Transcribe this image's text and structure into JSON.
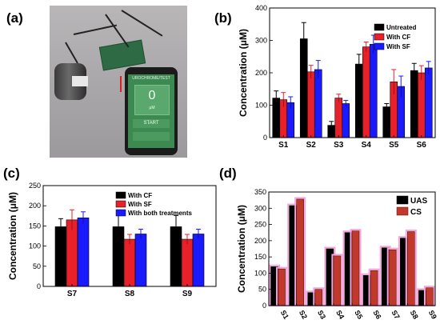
{
  "panels": {
    "a": {
      "label": "(a)"
    },
    "b": {
      "label": "(b)"
    },
    "c": {
      "label": "(c)"
    },
    "d": {
      "label": "(d)"
    }
  },
  "photo": {
    "screen_title": "UROCHROME/TEST",
    "reading_value": "0",
    "reading_unit": "μM",
    "button_start": "START",
    "button_extra": ""
  },
  "colors": {
    "black": "#000000",
    "red": "#e8202a",
    "blue": "#1a1aff",
    "pink_halo": "#f4a6dc",
    "cs_fill": "#c0392b",
    "cs_stroke": "#5a1212"
  },
  "chart_data": [
    {
      "panel": "b",
      "type": "bar",
      "ylabel": "Concentration (μM)",
      "xlabel": "",
      "title": "",
      "categories": [
        "S1",
        "S2",
        "S3",
        "S4",
        "S5",
        "S6"
      ],
      "ylim": [
        0,
        400
      ],
      "yticks": [
        0,
        100,
        200,
        300,
        400
      ],
      "legend_position": "top-right",
      "series": [
        {
          "name": "Untreated",
          "color": "#000000",
          "values": [
            122,
            305,
            38,
            227,
            95,
            207
          ],
          "errors": [
            22,
            50,
            12,
            30,
            10,
            22
          ]
        },
        {
          "name": "With CF",
          "color": "#e8202a",
          "values": [
            117,
            203,
            122,
            280,
            172,
            200
          ],
          "errors": [
            22,
            20,
            12,
            15,
            38,
            22
          ]
        },
        {
          "name": "With SF",
          "color": "#1a1aff",
          "values": [
            108,
            210,
            105,
            288,
            158,
            215
          ],
          "errors": [
            18,
            28,
            10,
            28,
            32,
            20
          ]
        }
      ]
    },
    {
      "panel": "c",
      "type": "bar",
      "ylabel": "Concentration (μM)",
      "xlabel": "",
      "title": "",
      "categories": [
        "S7",
        "S8",
        "S9"
      ],
      "ylim": [
        0,
        250
      ],
      "yticks": [
        0,
        50,
        100,
        150,
        200,
        250
      ],
      "legend_position": "top-right",
      "series": [
        {
          "name": "With CF",
          "color": "#000000",
          "values": [
            148,
            148,
            148
          ],
          "errors": [
            20,
            28,
            28
          ]
        },
        {
          "name": "With SF",
          "color": "#e8202a",
          "values": [
            165,
            117,
            117
          ],
          "errors": [
            25,
            12,
            12
          ]
        },
        {
          "name": "With both treatments",
          "color": "#1a1aff",
          "values": [
            170,
            130,
            130
          ],
          "errors": [
            15,
            12,
            12
          ]
        }
      ]
    },
    {
      "panel": "d",
      "type": "bar",
      "ylabel": "Concentration (μM)",
      "xlabel": "",
      "title": "",
      "categories": [
        "S1",
        "S2",
        "S3",
        "S4",
        "S5",
        "S6",
        "S7",
        "S8",
        "S9"
      ],
      "ylim": [
        0,
        350
      ],
      "yticks": [
        0,
        50,
        100,
        150,
        200,
        250,
        300,
        350
      ],
      "legend_position": "top-right",
      "highlight_pink": true,
      "series": [
        {
          "name": "UAS",
          "color": "#000000",
          "values": [
            120,
            308,
            40,
            175,
            225,
            93,
            178,
            208,
            47
          ]
        },
        {
          "name": "CS",
          "color": "#c0392b",
          "values": [
            113,
            328,
            50,
            153,
            230,
            108,
            172,
            228,
            55
          ]
        }
      ]
    }
  ]
}
